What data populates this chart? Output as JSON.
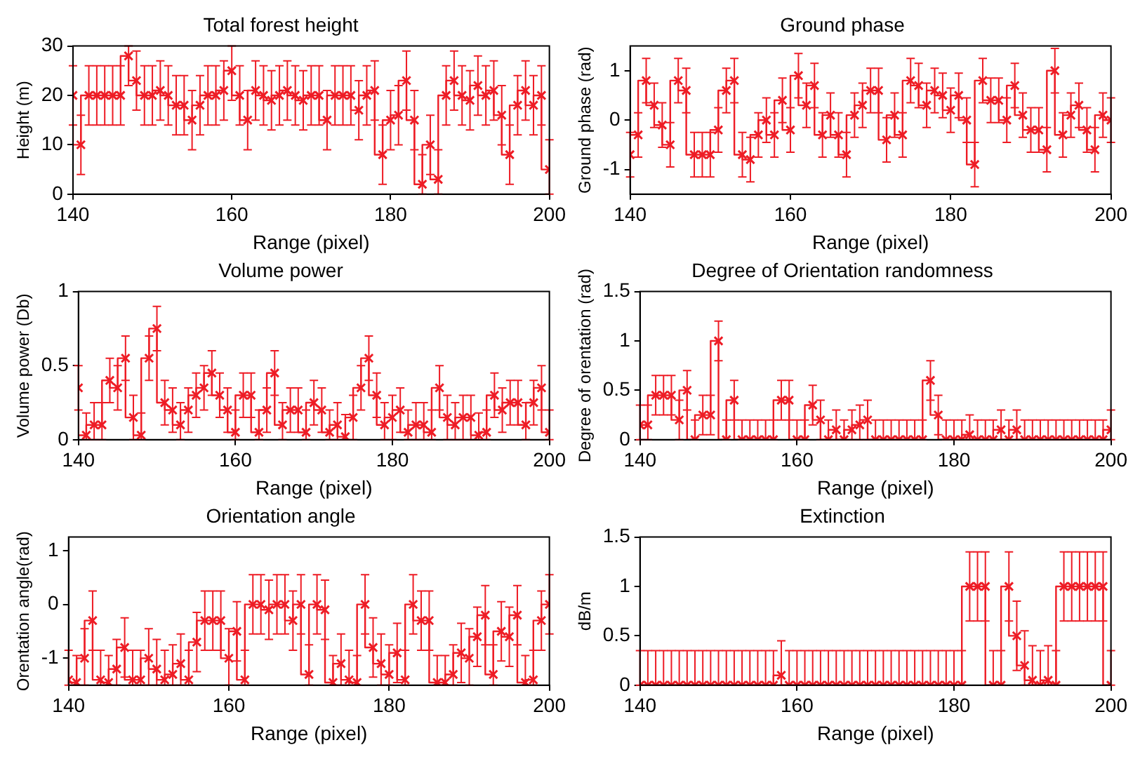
{
  "chart_data": [
    {
      "type": "step",
      "title": "Total forest height",
      "xlabel": "Range (pixel)",
      "ylabel": "Height (m)",
      "color": "#ee1c25",
      "marker": "cross",
      "xlim": [
        140,
        200
      ],
      "xticks": [
        140,
        160,
        180,
        200
      ],
      "ylim": [
        0,
        30
      ],
      "yticks": [
        0,
        10,
        20,
        30
      ],
      "x": [
        140,
        141,
        142,
        143,
        144,
        145,
        146,
        147,
        148,
        149,
        150,
        151,
        152,
        153,
        154,
        155,
        156,
        157,
        158,
        159,
        160,
        161,
        162,
        163,
        164,
        165,
        166,
        167,
        168,
        169,
        170,
        171,
        172,
        173,
        174,
        175,
        176,
        177,
        178,
        179,
        180,
        181,
        182,
        183,
        184,
        185,
        186,
        187,
        188,
        189,
        190,
        191,
        192,
        193,
        194,
        195,
        196,
        197,
        198,
        199,
        200
      ],
      "values": [
        20,
        10,
        20,
        20,
        20,
        20,
        20,
        28,
        23,
        20,
        20,
        21,
        20,
        18,
        18,
        15,
        18,
        20,
        20,
        21,
        25,
        20,
        15,
        21,
        20,
        19,
        20,
        21,
        20,
        19,
        20,
        20,
        15,
        20,
        20,
        20,
        17,
        20,
        21,
        8,
        15,
        16,
        23,
        15,
        2,
        10,
        3,
        20,
        23,
        20,
        19,
        22,
        20,
        21,
        16,
        8,
        18,
        21,
        18,
        20,
        5
      ],
      "errors": [
        6,
        6,
        6,
        6,
        6,
        6,
        6,
        [
          22,
          30
        ],
        6,
        6,
        6,
        6,
        6,
        6,
        6,
        6,
        6,
        6,
        6,
        6,
        [
          19,
          30
        ],
        6,
        6,
        6,
        6,
        6,
        6,
        6,
        6,
        6,
        6,
        6,
        6,
        6,
        6,
        6,
        6,
        6,
        6,
        6,
        6,
        6,
        6,
        6,
        [
          0,
          8
        ],
        6,
        [
          0,
          9
        ],
        6,
        6,
        6,
        6,
        6,
        6,
        6,
        6,
        6,
        6,
        6,
        6,
        6,
        [
          0,
          11
        ]
      ]
    },
    {
      "type": "step",
      "title": "Ground phase",
      "xlabel": "Range (pixel)",
      "ylabel": "Ground phase (rad)",
      "color": "#ee1c25",
      "marker": "cross",
      "xlim": [
        140,
        200
      ],
      "xticks": [
        140,
        160,
        180,
        200
      ],
      "ylim": [
        -1.5,
        1.5
      ],
      "yticks": [
        -1,
        0,
        1
      ],
      "x": [
        140,
        141,
        142,
        143,
        144,
        145,
        146,
        147,
        148,
        149,
        150,
        151,
        152,
        153,
        154,
        155,
        156,
        157,
        158,
        159,
        160,
        161,
        162,
        163,
        164,
        165,
        166,
        167,
        168,
        169,
        170,
        171,
        172,
        173,
        174,
        175,
        176,
        177,
        178,
        179,
        180,
        181,
        182,
        183,
        184,
        185,
        186,
        187,
        188,
        189,
        190,
        191,
        192,
        193,
        194,
        195,
        196,
        197,
        198,
        199,
        200
      ],
      "values": [
        -0.7,
        -0.3,
        0.8,
        0.3,
        -0.1,
        -0.5,
        0.8,
        0.6,
        -0.7,
        -0.7,
        -0.7,
        -0.2,
        0.6,
        0.8,
        -0.7,
        -0.8,
        -0.3,
        0,
        -0.3,
        0.4,
        -0.2,
        0.9,
        0.3,
        0.7,
        -0.3,
        0.1,
        -0.3,
        -0.7,
        0.1,
        0.3,
        0.6,
        0.6,
        -0.4,
        0.1,
        -0.3,
        0.8,
        0.7,
        0.3,
        0.6,
        0.5,
        0.2,
        0.5,
        0,
        -0.9,
        0.8,
        0.4,
        0.4,
        0,
        0.7,
        0.1,
        -0.2,
        -0.2,
        -0.6,
        1.0,
        -0.3,
        0.1,
        0.3,
        -0.2,
        -0.6,
        0.1,
        0
      ],
      "errors": [
        0.45,
        0.45,
        0.45,
        0.45,
        0.45,
        0.45,
        0.45,
        0.45,
        0.45,
        0.45,
        0.45,
        0.45,
        0.45,
        0.45,
        0.45,
        0.45,
        0.45,
        0.45,
        0.45,
        0.45,
        0.45,
        0.45,
        0.45,
        0.45,
        0.45,
        0.45,
        0.45,
        0.45,
        0.45,
        0.45,
        0.45,
        0.45,
        0.45,
        0.45,
        0.45,
        0.45,
        0.45,
        0.45,
        0.45,
        0.45,
        0.45,
        0.45,
        0.45,
        0.45,
        0.45,
        0.45,
        0.45,
        0.45,
        0.45,
        0.45,
        0.45,
        0.45,
        0.45,
        0.45,
        0.45,
        0.45,
        0.45,
        0.45,
        0.45,
        0.45,
        0.45
      ]
    },
    {
      "type": "step",
      "title": "Volume power",
      "xlabel": "Range (pixel)",
      "ylabel": "Volume power (Db)",
      "color": "#ee1c25",
      "marker": "cross",
      "xlim": [
        140,
        200
      ],
      "xticks": [
        140,
        160,
        180,
        200
      ],
      "ylim": [
        0,
        1
      ],
      "yticks": [
        0,
        0.5,
        1
      ],
      "x": [
        140,
        141,
        142,
        143,
        144,
        145,
        146,
        147,
        148,
        149,
        150,
        151,
        152,
        153,
        154,
        155,
        156,
        157,
        158,
        159,
        160,
        161,
        162,
        163,
        164,
        165,
        166,
        167,
        168,
        169,
        170,
        171,
        172,
        173,
        174,
        175,
        176,
        177,
        178,
        179,
        180,
        181,
        182,
        183,
        184,
        185,
        186,
        187,
        188,
        189,
        190,
        191,
        192,
        193,
        194,
        195,
        196,
        197,
        198,
        199,
        200
      ],
      "values": [
        0.35,
        0.03,
        0.1,
        0.1,
        0.4,
        0.35,
        0.55,
        0.15,
        0.03,
        0.55,
        0.75,
        0.25,
        0.2,
        0.1,
        0.2,
        0.3,
        0.35,
        0.45,
        0.3,
        0.2,
        0.05,
        0.3,
        0.3,
        0.05,
        0.2,
        0.45,
        0.1,
        0.2,
        0.2,
        0.05,
        0.25,
        0.2,
        0.05,
        0.1,
        0.02,
        0.15,
        0.35,
        0.55,
        0.3,
        0.1,
        0.15,
        0.2,
        0.05,
        0.1,
        0.1,
        0.05,
        0.35,
        0.15,
        0.1,
        0.15,
        0.15,
        0.03,
        0.05,
        0.3,
        0.2,
        0.25,
        0.25,
        0.1,
        0.25,
        0.35,
        0.05
      ],
      "errors": [
        0.15,
        [
          0,
          0.18
        ],
        [
          0,
          0.25
        ],
        [
          0,
          0.25
        ],
        0.15,
        0.15,
        0.15,
        0.15,
        [
          0,
          0.18
        ],
        0.15,
        0.15,
        0.15,
        0.15,
        [
          0,
          0.25
        ],
        0.15,
        0.15,
        0.15,
        0.15,
        0.15,
        0.15,
        [
          0,
          0.2
        ],
        0.15,
        0.15,
        [
          0,
          0.2
        ],
        0.15,
        0.15,
        [
          0,
          0.25
        ],
        0.15,
        0.15,
        [
          0,
          0.2
        ],
        0.15,
        0.15,
        [
          0,
          0.2
        ],
        [
          0,
          0.25
        ],
        [
          0,
          0.17
        ],
        0.15,
        0.15,
        0.15,
        0.15,
        [
          0,
          0.25
        ],
        0.15,
        0.15,
        [
          0,
          0.2
        ],
        [
          0,
          0.25
        ],
        [
          0,
          0.25
        ],
        [
          0,
          0.2
        ],
        0.15,
        0.15,
        [
          0,
          0.25
        ],
        0.15,
        0.15,
        [
          0,
          0.18
        ],
        [
          0,
          0.2
        ],
        0.15,
        0.15,
        0.15,
        0.15,
        [
          0,
          0.25
        ],
        0.15,
        0.15,
        [
          0,
          0.2
        ]
      ]
    },
    {
      "type": "step",
      "title": "Degree of Orientation randomness",
      "xlabel": "Range (pixel)",
      "ylabel": "Degree of orentation (rad)",
      "color": "#ee1c25",
      "marker": "cross",
      "xlim": [
        140,
        200
      ],
      "xticks": [
        140,
        160,
        180,
        200
      ],
      "ylim": [
        0,
        1.5
      ],
      "yticks": [
        0,
        0.5,
        1,
        1.5
      ],
      "x": [
        140,
        141,
        142,
        143,
        144,
        145,
        146,
        147,
        148,
        149,
        150,
        151,
        152,
        153,
        154,
        155,
        156,
        157,
        158,
        159,
        160,
        161,
        162,
        163,
        164,
        165,
        166,
        167,
        168,
        169,
        170,
        171,
        172,
        173,
        174,
        175,
        176,
        177,
        178,
        179,
        180,
        181,
        182,
        183,
        184,
        185,
        186,
        187,
        188,
        189,
        190,
        191,
        192,
        193,
        194,
        195,
        196,
        197,
        198,
        199,
        200
      ],
      "values": [
        0.15,
        0.15,
        0.45,
        0.45,
        0.45,
        0.2,
        0.5,
        0,
        0.25,
        0.25,
        1.0,
        0,
        0.4,
        0,
        0,
        0,
        0,
        0,
        0.4,
        0.4,
        0,
        0,
        0.35,
        0.2,
        0,
        0.1,
        0,
        0.1,
        0.15,
        0.2,
        0,
        0,
        0,
        0,
        0,
        0,
        0,
        0.6,
        0.25,
        0,
        0,
        0,
        0.05,
        0,
        0,
        0,
        0.1,
        0,
        0.1,
        0,
        0,
        0,
        0,
        0,
        0,
        0,
        0,
        0,
        0,
        0,
        0.1
      ],
      "errors": [
        [
          0,
          0.35
        ],
        [
          0,
          0.35
        ],
        0.2,
        0.2,
        0.2,
        0.2,
        0.2,
        [
          0,
          0.2
        ],
        0.2,
        0.2,
        0.2,
        [
          0,
          0.2
        ],
        0.2,
        [
          0,
          0.2
        ],
        [
          0,
          0.2
        ],
        [
          0,
          0.2
        ],
        [
          0,
          0.2
        ],
        [
          0,
          0.2
        ],
        0.2,
        0.2,
        [
          0,
          0.2
        ],
        [
          0,
          0.2
        ],
        0.2,
        0.2,
        [
          0,
          0.2
        ],
        [
          0,
          0.3
        ],
        [
          0,
          0.2
        ],
        [
          0,
          0.3
        ],
        [
          0,
          0.35
        ],
        0.2,
        [
          0,
          0.2
        ],
        [
          0,
          0.2
        ],
        [
          0,
          0.2
        ],
        [
          0,
          0.2
        ],
        [
          0,
          0.2
        ],
        [
          0,
          0.2
        ],
        [
          0,
          0.2
        ],
        0.2,
        0.2,
        [
          0,
          0.2
        ],
        [
          0,
          0.2
        ],
        [
          0,
          0.2
        ],
        [
          0,
          0.25
        ],
        [
          0,
          0.2
        ],
        [
          0,
          0.2
        ],
        [
          0,
          0.2
        ],
        [
          0,
          0.3
        ],
        [
          0,
          0.2
        ],
        [
          0,
          0.3
        ],
        [
          0,
          0.2
        ],
        [
          0,
          0.2
        ],
        [
          0,
          0.2
        ],
        [
          0,
          0.2
        ],
        [
          0,
          0.2
        ],
        [
          0,
          0.2
        ],
        [
          0,
          0.2
        ],
        [
          0,
          0.2
        ],
        [
          0,
          0.2
        ],
        [
          0,
          0.2
        ],
        [
          0,
          0.2
        ],
        [
          0,
          0.3
        ]
      ]
    },
    {
      "type": "step",
      "title": "Orientation angle",
      "xlabel": "Range (pixel)",
      "ylabel": "Orentation angle(rad)",
      "color": "#ee1c25",
      "marker": "cross",
      "xlim": [
        140,
        200
      ],
      "xticks": [
        140,
        160,
        180,
        200
      ],
      "ylim": [
        -1.5,
        1.25
      ],
      "yticks": [
        -1,
        0,
        1
      ],
      "x": [
        140,
        141,
        142,
        143,
        144,
        145,
        146,
        147,
        148,
        149,
        150,
        151,
        152,
        153,
        154,
        155,
        156,
        157,
        158,
        159,
        160,
        161,
        162,
        163,
        164,
        165,
        166,
        167,
        168,
        169,
        170,
        171,
        172,
        173,
        174,
        175,
        176,
        177,
        178,
        179,
        180,
        181,
        182,
        183,
        184,
        185,
        186,
        187,
        188,
        189,
        190,
        191,
        192,
        193,
        194,
        195,
        196,
        197,
        198,
        199,
        200
      ],
      "values": [
        -1.4,
        -1.45,
        -1.0,
        -0.3,
        -1.4,
        -1.45,
        -1.2,
        -0.8,
        -1.4,
        -1.4,
        -1.0,
        -1.2,
        -1.4,
        -1.3,
        -1.1,
        -1.4,
        -0.7,
        -0.3,
        -0.3,
        -0.3,
        -1.0,
        -0.5,
        -1.4,
        0,
        0,
        -0.1,
        0,
        0,
        -0.3,
        0,
        -1.3,
        0,
        -0.1,
        -1.45,
        -1.1,
        -1.4,
        -1.45,
        0,
        -0.8,
        -1.1,
        -1.3,
        -0.9,
        -1.4,
        0,
        -0.3,
        -0.3,
        -1.45,
        -1.45,
        -1.3,
        -0.9,
        -1.0,
        -0.6,
        -0.2,
        -1.3,
        -0.5,
        -0.6,
        -0.2,
        -1.45,
        -1.4,
        -0.3,
        0
      ],
      "errors": [
        [
          -1.5,
          -0.85
        ],
        [
          -1.5,
          -0.95
        ],
        [
          -1.5,
          -0.45
        ],
        0.55,
        [
          -1.5,
          -0.85
        ],
        [
          -1.5,
          -0.95
        ],
        [
          -1.5,
          -0.65
        ],
        0.55,
        [
          -1.5,
          -0.85
        ],
        [
          -1.5,
          -0.85
        ],
        [
          -1.5,
          -0.45
        ],
        [
          -1.5,
          -0.65
        ],
        [
          -1.5,
          -0.85
        ],
        [
          -1.5,
          -0.75
        ],
        [
          -1.5,
          -0.55
        ],
        [
          -1.5,
          -0.85
        ],
        0.55,
        0.55,
        0.55,
        0.55,
        [
          -1.5,
          -0.45
        ],
        0.55,
        [
          -1.5,
          -0.85
        ],
        0.55,
        0.55,
        0.55,
        0.55,
        0.55,
        0.55,
        0.55,
        [
          -1.5,
          -0.75
        ],
        0.55,
        0.55,
        [
          -1.5,
          -0.95
        ],
        [
          -1.5,
          -0.55
        ],
        [
          -1.5,
          -0.85
        ],
        [
          -1.5,
          -0.95
        ],
        0.55,
        0.55,
        [
          -1.5,
          -0.55
        ],
        [
          -1.5,
          -0.75
        ],
        0.55,
        [
          -1.5,
          -0.85
        ],
        0.55,
        0.55,
        0.55,
        [
          -1.5,
          -0.95
        ],
        [
          -1.5,
          -0.95
        ],
        [
          -1.5,
          -0.75
        ],
        0.55,
        [
          -1.5,
          -0.45
        ],
        0.55,
        0.55,
        [
          -1.5,
          -0.75
        ],
        0.55,
        0.55,
        0.55,
        [
          -1.5,
          -0.95
        ],
        [
          -1.5,
          -0.85
        ],
        0.55,
        0.55
      ]
    },
    {
      "type": "step",
      "title": "Extinction",
      "xlabel": "Range (pixel)",
      "ylabel": "dB/m",
      "color": "#ee1c25",
      "marker": "cross",
      "xlim": [
        140,
        200
      ],
      "xticks": [
        140,
        160,
        180,
        200
      ],
      "ylim": [
        0,
        1.5
      ],
      "yticks": [
        0,
        0.5,
        1,
        1.5
      ],
      "x": [
        140,
        141,
        142,
        143,
        144,
        145,
        146,
        147,
        148,
        149,
        150,
        151,
        152,
        153,
        154,
        155,
        156,
        157,
        158,
        159,
        160,
        161,
        162,
        163,
        164,
        165,
        166,
        167,
        168,
        169,
        170,
        171,
        172,
        173,
        174,
        175,
        176,
        177,
        178,
        179,
        180,
        181,
        182,
        183,
        184,
        185,
        186,
        187,
        188,
        189,
        190,
        191,
        192,
        193,
        194,
        195,
        196,
        197,
        198,
        199,
        200
      ],
      "values": [
        0,
        0,
        0,
        0,
        0,
        0,
        0,
        0,
        0,
        0,
        0,
        0,
        0,
        0,
        0,
        0,
        0,
        0,
        0.1,
        0,
        0,
        0,
        0,
        0,
        0,
        0,
        0,
        0,
        0,
        0,
        0,
        0,
        0,
        0,
        0,
        0,
        0,
        0,
        0,
        0,
        0,
        0,
        1,
        1,
        1,
        0,
        0,
        1,
        0.5,
        0.2,
        0.05,
        0,
        0.05,
        0,
        1,
        1,
        1,
        1,
        1,
        1,
        0
      ],
      "errors": [
        [
          0,
          0.35
        ],
        [
          0,
          0.35
        ],
        [
          0,
          0.35
        ],
        [
          0,
          0.35
        ],
        [
          0,
          0.35
        ],
        [
          0,
          0.35
        ],
        [
          0,
          0.35
        ],
        [
          0,
          0.35
        ],
        [
          0,
          0.35
        ],
        [
          0,
          0.35
        ],
        [
          0,
          0.35
        ],
        [
          0,
          0.35
        ],
        [
          0,
          0.35
        ],
        [
          0,
          0.35
        ],
        [
          0,
          0.35
        ],
        [
          0,
          0.35
        ],
        [
          0,
          0.35
        ],
        [
          0,
          0.35
        ],
        [
          0,
          0.45
        ],
        [
          0,
          0.35
        ],
        [
          0,
          0.35
        ],
        [
          0,
          0.35
        ],
        [
          0,
          0.35
        ],
        [
          0,
          0.35
        ],
        [
          0,
          0.35
        ],
        [
          0,
          0.35
        ],
        [
          0,
          0.35
        ],
        [
          0,
          0.35
        ],
        [
          0,
          0.35
        ],
        [
          0,
          0.35
        ],
        [
          0,
          0.35
        ],
        [
          0,
          0.35
        ],
        [
          0,
          0.35
        ],
        [
          0,
          0.35
        ],
        [
          0,
          0.35
        ],
        [
          0,
          0.35
        ],
        [
          0,
          0.35
        ],
        [
          0,
          0.35
        ],
        [
          0,
          0.35
        ],
        [
          0,
          0.35
        ],
        [
          0,
          0.35
        ],
        [
          0,
          0.35
        ],
        0.35,
        0.35,
        0.35,
        [
          0,
          0.35
        ],
        [
          0,
          0.35
        ],
        0.35,
        0.35,
        [
          0,
          0.55
        ],
        [
          0,
          0.4
        ],
        [
          0,
          0.35
        ],
        [
          0,
          0.4
        ],
        [
          0,
          0.35
        ],
        0.35,
        0.35,
        0.35,
        0.35,
        0.35,
        0.35,
        [
          0,
          0.35
        ]
      ]
    }
  ]
}
